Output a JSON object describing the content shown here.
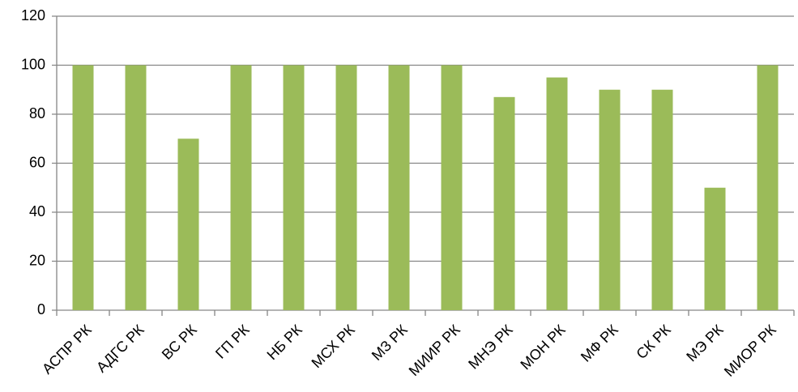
{
  "chart_data": {
    "type": "bar",
    "categories": [
      "АСПР РК",
      "АДГС РК",
      "ВС РК",
      "ГП РК",
      "НБ РК",
      "МСХ РК",
      "МЗ РК",
      "МИИР РК",
      "МНЭ РК",
      "МОН РК",
      "МФ РК",
      "СК РК",
      "МЭ РК",
      "МИОР РК"
    ],
    "values": [
      100,
      100,
      70,
      100,
      100,
      100,
      100,
      100,
      87,
      95,
      90,
      90,
      50,
      100
    ],
    "color": "#9bbb59",
    "ylim": [
      0,
      120
    ],
    "yticks": [
      0,
      20,
      40,
      60,
      80,
      100,
      120
    ],
    "grid": true
  }
}
